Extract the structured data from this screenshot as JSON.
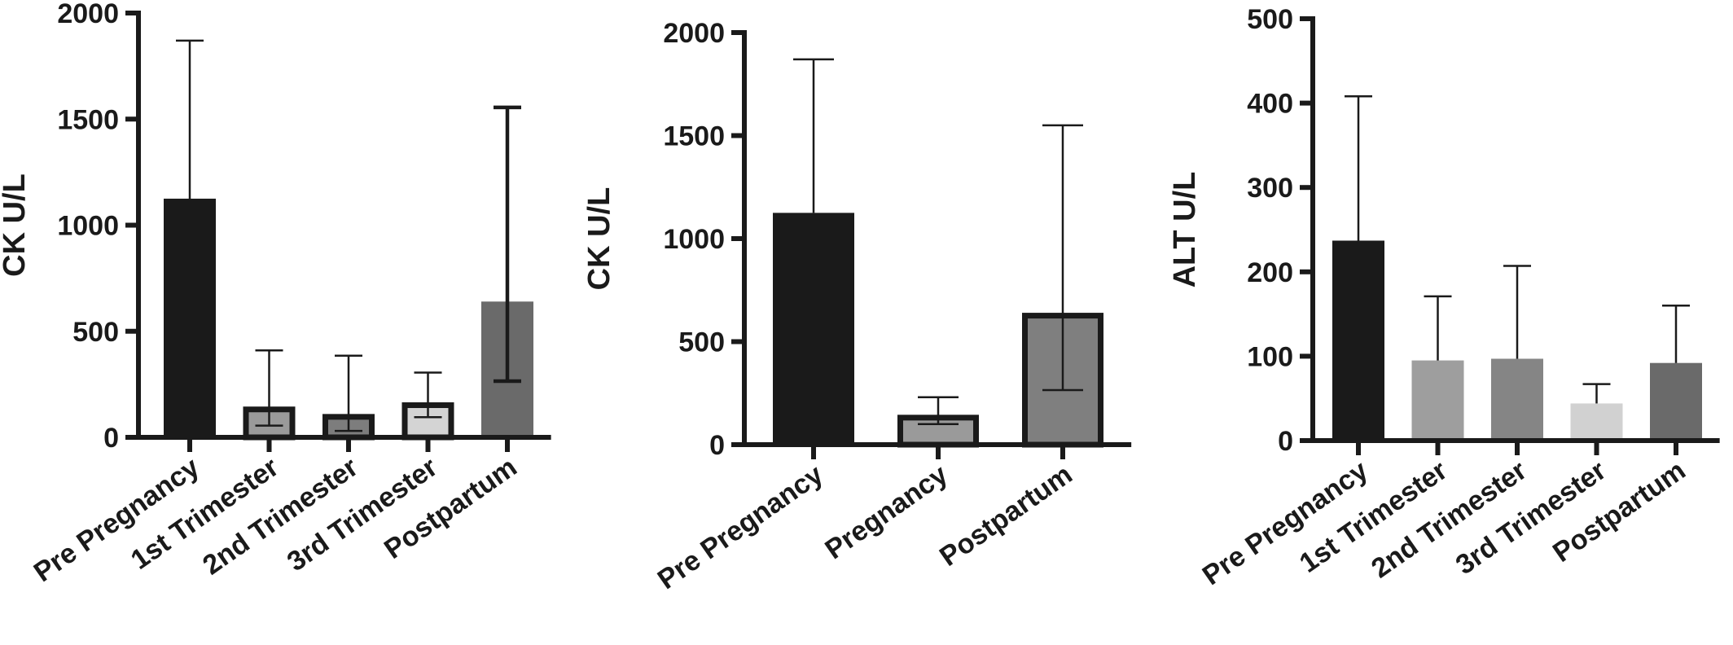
{
  "chart_data": [
    {
      "type": "bar",
      "ylabel": "CK U/L",
      "ylim": [
        0,
        2000
      ],
      "yticks": [
        0,
        500,
        1000,
        1500,
        2000
      ],
      "categories": [
        "Pre Pregnancy",
        "1st Trimester",
        "2nd Trimester",
        "3rd Trimester",
        "Postpartum"
      ],
      "values": [
        1125,
        145,
        110,
        165,
        640
      ],
      "error_low": [
        1125,
        55,
        30,
        95,
        265
      ],
      "error_high": [
        1870,
        410,
        385,
        305,
        1555
      ],
      "colors": [
        "#1a1a1a",
        "#9a9a9a",
        "#7d7d7d",
        "#d4d4d4",
        "#6a6a6a"
      ],
      "outlined": [
        false,
        true,
        true,
        true,
        false
      ]
    },
    {
      "type": "bar",
      "ylabel": "CK U/L",
      "ylim": [
        0,
        2000
      ],
      "yticks": [
        0,
        500,
        1000,
        1500,
        2000
      ],
      "categories": [
        "Pre Pregnancy",
        "Pregnancy",
        "Postpartum"
      ],
      "values": [
        1125,
        145,
        640
      ],
      "error_low": [
        1125,
        100,
        265
      ],
      "error_high": [
        1870,
        230,
        1550
      ],
      "colors": [
        "#1a1a1a",
        "#9a9a9a",
        "#7f7f7f"
      ],
      "outlined": [
        false,
        true,
        true
      ]
    },
    {
      "type": "bar",
      "ylabel": "ALT U/L",
      "ylim": [
        0,
        500
      ],
      "yticks": [
        0,
        100,
        200,
        300,
        400,
        500
      ],
      "categories": [
        "Pre Pregnancy",
        "1st Trimester",
        "2nd Trimester",
        "3rd Trimester",
        "Postpartum"
      ],
      "values": [
        237,
        95,
        97,
        44,
        92
      ],
      "error_low": [
        237,
        95,
        97,
        44,
        92
      ],
      "error_high": [
        408,
        171,
        207,
        67,
        160
      ],
      "colors": [
        "#1a1a1a",
        "#9e9e9e",
        "#858585",
        "#d1d1d1",
        "#6a6a6a"
      ],
      "outlined": [
        false,
        false,
        false,
        false,
        false
      ]
    }
  ]
}
